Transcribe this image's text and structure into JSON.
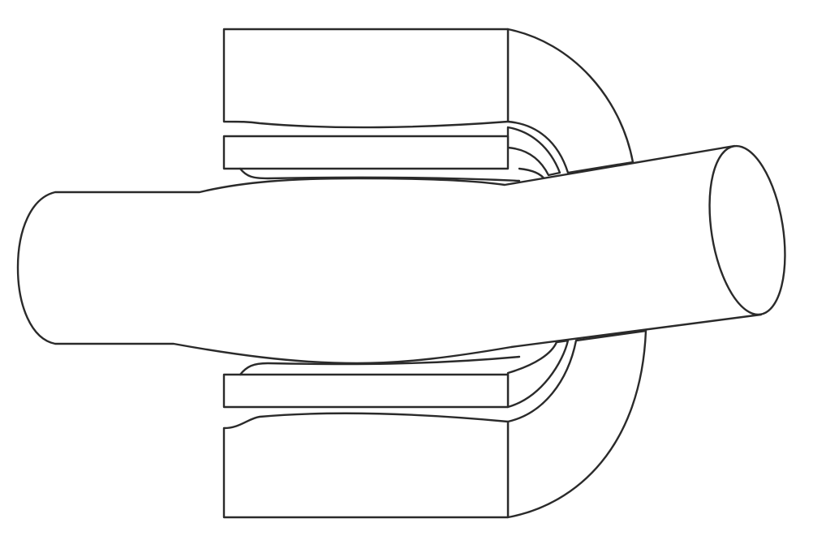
{
  "figure": {
    "parts": [
      {
        "id": "upper-housing",
        "icon": "housing-block-icon"
      },
      {
        "id": "upper-bearing-shell",
        "icon": "bearing-shell-icon"
      },
      {
        "id": "lower-bearing-shell",
        "icon": "bearing-shell-icon"
      },
      {
        "id": "lower-housing",
        "icon": "housing-block-icon"
      },
      {
        "id": "shaft",
        "icon": "shaft-icon"
      }
    ],
    "colors": {
      "stroke": "#2a2a2a",
      "fill": "#ffffff",
      "background": "#ffffff"
    }
  }
}
